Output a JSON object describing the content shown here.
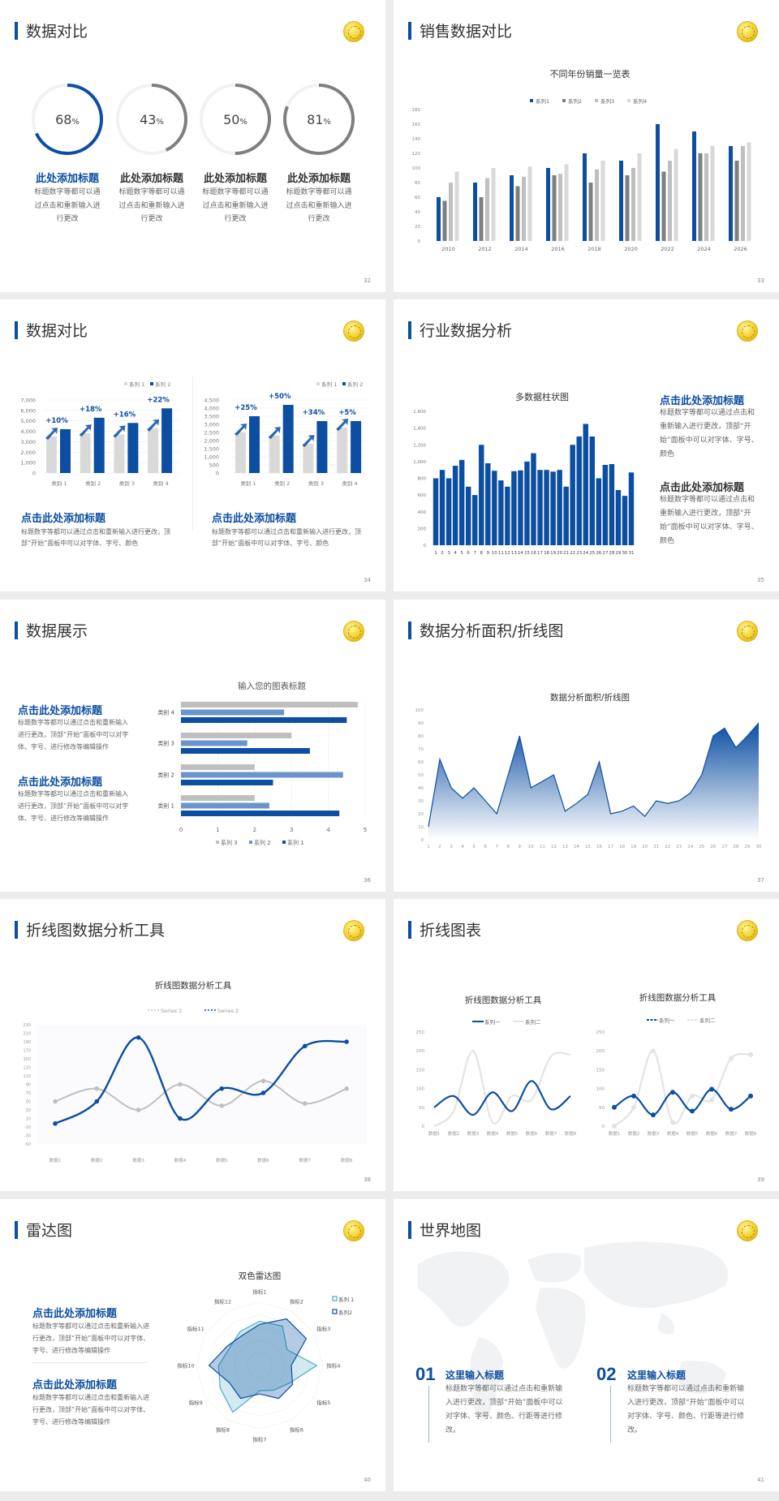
{
  "colors": {
    "blue": "#0b4ea2",
    "mid_blue": "#6a95cc",
    "dark_gray": "#7f7f7f",
    "gray": "#bfbfbf",
    "light_gray": "#d9d9d9",
    "light_blue": "#4bacc6"
  },
  "slides": [
    {
      "title": "数据对比",
      "page": "32"
    },
    {
      "title": "销售数据对比",
      "page": "33"
    },
    {
      "title": "数据对比",
      "page": "34"
    },
    {
      "title": "行业数据分析",
      "page": "35"
    },
    {
      "title": "数据展示",
      "page": "36"
    },
    {
      "title": "数据分析面积/折线图",
      "page": "37"
    },
    {
      "title": "折线图数据分析工具",
      "page": "38"
    },
    {
      "title": "折线图表",
      "page": "39"
    },
    {
      "title": "雷达图",
      "page": "40"
    },
    {
      "title": "世界地图",
      "page": "41"
    }
  ],
  "rings": [
    {
      "value": 68,
      "label": "68",
      "unit": "%",
      "heading": "此处添加标题",
      "desc": "标题数字等都可以通过点击和重新输入进行更改",
      "accent": true
    },
    {
      "value": 43,
      "label": "43",
      "unit": "%",
      "heading": "此处添加标题",
      "desc": "标题数字等都可以通过点击和重新输入进行更改",
      "accent": false
    },
    {
      "value": 50,
      "label": "50",
      "unit": "%",
      "heading": "此处添加标题",
      "desc": "标题数字等都可以通过点击和重新输入进行更改",
      "accent": false
    },
    {
      "value": 81,
      "label": "81",
      "unit": "%",
      "heading": "此处添加标题",
      "desc": "标题数字等都可以通过点击和重新输入进行更改",
      "accent": false
    }
  ],
  "slide34_text": [
    {
      "heading": "点击此处添加标题",
      "desc": "标题数字等都可以通过点击和重新输入进行更改，顶部“开始”面板中可以对字体、字号、颜色"
    },
    {
      "heading": "点击此处添加标题",
      "desc": "标题数字等都可以通过点击和重新输入进行更改，顶部“开始”面板中可以对字体、字号、颜色"
    }
  ],
  "slide35_text": [
    {
      "heading": "点击此处添加标题",
      "desc": "标题数字等都可以通过点击和重新输入进行更改，顶部“开始”面板中可以对字体、字号、颜色"
    },
    {
      "heading": "点击此处添加标题",
      "desc": "标题数字等都可以通过点击和重新输入进行更改，顶部“开始”面板中可以对字体、字号、颜色"
    }
  ],
  "slide36_text": [
    {
      "heading": "点击此处添加标题",
      "desc": "标题数字等都可以通过点击和重新输入进行更改，顶部“开始”面板中可以对字体、字号、进行修改等编辑操作"
    },
    {
      "heading": "点击此处添加标题",
      "desc": "标题数字等都可以通过点击和重新输入进行更改，顶部“开始”面板中可以对字体、字号、进行修改等编辑操作"
    }
  ],
  "slide40_text": [
    {
      "heading": "点击此处添加标题",
      "desc": "标题数字等都可以通过点击和重新输入进行更改，顶部“开始”面板中可以对字体、字号、进行修改等编辑操作"
    },
    {
      "heading": "点击此处添加标题",
      "desc": "标题数字等都可以通过点击和重新输入进行更改，顶部“开始”面板中可以对字体、字号、进行修改等编辑操作"
    }
  ],
  "slide41_items": [
    {
      "num": "01",
      "heading": "这里输入标题",
      "desc": "标题数字等都可以通过点击和重新输入进行更改，顶部“开始”面板中可以对字体、字号、颜色、行距等进行修改。"
    },
    {
      "num": "02",
      "heading": "这里输入标题",
      "desc": "标题数字等都可以通过点击和重新输入进行更改，顶部“开始”面板中可以对字体、字号、颜色、行距等进行修改。"
    }
  ],
  "chart_data": [
    {
      "type": "bar",
      "title": "不同年份销量一览表",
      "categories": [
        "2010",
        "2012",
        "2014",
        "2016",
        "2018",
        "2020",
        "2022",
        "2024",
        "2026"
      ],
      "series": [
        {
          "name": "系列1",
          "values": [
            60,
            80,
            90,
            100,
            120,
            110,
            160,
            150,
            130
          ]
        },
        {
          "name": "系列2",
          "values": [
            55,
            60,
            75,
            90,
            80,
            90,
            95,
            120,
            110
          ]
        },
        {
          "name": "系列3",
          "values": [
            80,
            86,
            88,
            92,
            98,
            100,
            110,
            120,
            130
          ]
        },
        {
          "name": "系列4",
          "values": [
            95,
            100,
            102,
            105,
            110,
            120,
            126,
            130,
            135
          ]
        }
      ],
      "ylim": [
        0,
        180
      ],
      "yticks": [
        "0",
        "20",
        "40",
        "60",
        "80",
        "100",
        "120",
        "140",
        "160",
        "180"
      ],
      "legend": "top",
      "grid": false
    },
    {
      "type": "bar",
      "categories": [
        "类别 1",
        "类别 2",
        "类别 3",
        "类别 4"
      ],
      "series": [
        {
          "name": "系列 1",
          "values": [
            3500,
            3800,
            3700,
            4300
          ]
        },
        {
          "name": "系列 2",
          "values": [
            4200,
            5300,
            4800,
            6200
          ]
        }
      ],
      "annotations": [
        "+10%",
        "+18%",
        "+16%",
        "+22%"
      ],
      "ylim": [
        0,
        7000
      ],
      "yticks": [
        "0",
        "1,000",
        "2,000",
        "3,000",
        "4,000",
        "5,000",
        "6,000",
        "7,000"
      ],
      "legend": "top-right",
      "grid": true
    },
    {
      "type": "bar",
      "categories": [
        "类别 1",
        "类别 2",
        "类别 3",
        "类别 4"
      ],
      "series": [
        {
          "name": "系列 1",
          "values": [
            2500,
            2300,
            1800,
            2800
          ]
        },
        {
          "name": "系列 2",
          "values": [
            3500,
            4200,
            3200,
            3200
          ]
        }
      ],
      "annotations": [
        "+25%",
        "+50%",
        "+34%",
        "+5%"
      ],
      "ylim": [
        0,
        4500
      ],
      "yticks": [
        "0",
        "500",
        "1,000",
        "1,500",
        "2,000",
        "2,500",
        "3,000",
        "3,500",
        "4,000",
        "4,500"
      ],
      "legend": "top-right",
      "grid": true
    },
    {
      "type": "bar",
      "title": "多数据柱状图",
      "categories": [
        "1",
        "2",
        "3",
        "4",
        "5",
        "6",
        "7",
        "8",
        "9",
        "10",
        "11",
        "12",
        "13",
        "14",
        "15",
        "16",
        "17",
        "18",
        "19",
        "20",
        "21",
        "22",
        "23",
        "24",
        "25",
        "26",
        "27",
        "28",
        "29",
        "30",
        "31"
      ],
      "values": [
        800,
        900,
        800,
        950,
        1020,
        700,
        600,
        1200,
        980,
        890,
        775,
        700,
        885,
        895,
        1000,
        1100,
        900,
        900,
        880,
        900,
        700,
        1200,
        1300,
        1450,
        1300,
        800,
        960,
        970,
        660,
        590,
        870
      ],
      "ylim": [
        0,
        1600
      ],
      "yticks": [
        "0",
        "200",
        "400",
        "600",
        "800",
        "1,000",
        "1,200",
        "1,400",
        "1,600"
      ],
      "grid": false
    },
    {
      "type": "bar",
      "orientation": "horizontal",
      "title": "输入您的图表标题",
      "categories": [
        "类别 1",
        "类别 2",
        "类别 3",
        "类别 4"
      ],
      "series": [
        {
          "name": "系列 1",
          "values": [
            4.3,
            2.5,
            3.5,
            4.5
          ]
        },
        {
          "name": "系列 2",
          "values": [
            2.4,
            4.4,
            1.8,
            2.8
          ]
        },
        {
          "name": "系列 3",
          "values": [
            2,
            2,
            3,
            4.8
          ]
        }
      ],
      "xlim": [
        0,
        5
      ],
      "xticks": [
        "0",
        "1",
        "2",
        "3",
        "4",
        "5"
      ],
      "legend": "bottom",
      "legend_order": [
        "系列 3",
        "系列 2",
        "系列 1"
      ],
      "grid": true
    },
    {
      "type": "area",
      "title": "数据分析面积/折线图",
      "x": [
        "1",
        "2",
        "3",
        "4",
        "5",
        "6",
        "7",
        "8",
        "9",
        "10",
        "11",
        "12",
        "13",
        "14",
        "15",
        "16",
        "17",
        "18",
        "19",
        "20",
        "21",
        "22",
        "23",
        "24",
        "25",
        "26",
        "27",
        "28",
        "29",
        "30"
      ],
      "values": [
        10,
        62,
        40,
        32,
        40,
        30,
        20,
        50,
        80,
        40,
        45,
        50,
        22,
        28,
        35,
        60,
        20,
        22,
        26,
        18,
        30,
        28,
        30,
        36,
        50,
        80,
        86,
        71,
        80,
        90
      ],
      "ylim": [
        0,
        100
      ],
      "yticks": [
        "0",
        "10",
        "20",
        "30",
        "40",
        "50",
        "60",
        "70",
        "80",
        "90",
        "100"
      ],
      "grid": false
    },
    {
      "type": "line",
      "smooth": true,
      "title": "折线图数据分析工具",
      "categories": [
        "数据1",
        "数据2",
        "数据3",
        "数据4",
        "数据5",
        "数据6",
        "数据7",
        "数据8"
      ],
      "series": [
        {
          "name": "Series 1",
          "values": [
            50,
            80,
            30,
            90,
            40,
            98,
            45,
            80
          ]
        },
        {
          "name": "Series 2",
          "values": [
            -2,
            50,
            200,
            10,
            80,
            70,
            180,
            190
          ]
        }
      ],
      "ylim": [
        -50,
        230
      ],
      "yticks": [
        "-50",
        "-30",
        "-10",
        "10",
        "30",
        "50",
        "70",
        "90",
        "110",
        "130",
        "150",
        "170",
        "190",
        "210",
        "230"
      ],
      "legend": "top"
    },
    {
      "type": "line",
      "smooth": true,
      "title": "折线图数据分析工具",
      "categories": [
        "数据1",
        "数据2",
        "数据3",
        "数据4",
        "数据5",
        "数据6",
        "数据7",
        "数据8"
      ],
      "series": [
        {
          "name": "系列一",
          "values": [
            50,
            80,
            30,
            90,
            40,
            120,
            45,
            80
          ]
        },
        {
          "name": "系列二",
          "values": [
            0,
            40,
            200,
            10,
            80,
            70,
            185,
            190
          ]
        }
      ],
      "ylim": [
        0,
        250
      ],
      "yticks": [
        "0",
        "50",
        "100",
        "150",
        "200",
        "250"
      ],
      "legend": "top"
    },
    {
      "type": "line",
      "smooth": true,
      "markers": true,
      "title": "折线图数据分析工具",
      "categories": [
        "数据1",
        "数据2",
        "数据3",
        "数据4",
        "数据5",
        "数据6",
        "数据7",
        "数据8"
      ],
      "series": [
        {
          "name": "系列一",
          "values": [
            50,
            80,
            30,
            90,
            40,
            98,
            45,
            80
          ]
        },
        {
          "name": "系列二",
          "values": [
            0,
            50,
            200,
            10,
            80,
            70,
            180,
            190
          ]
        }
      ],
      "ylim": [
        0,
        250
      ],
      "yticks": [
        "0",
        "50",
        "100",
        "150",
        "200",
        "250"
      ],
      "legend": "top"
    },
    {
      "type": "radar",
      "title": "双色雷达图",
      "axes": [
        "指标1",
        "指标2",
        "指标3",
        "指标4",
        "指标5",
        "指标6",
        "指标7",
        "指标8",
        "指标9",
        "指标10",
        "指标11",
        "指标12"
      ],
      "series": [
        {
          "name": "系列 1",
          "values": [
            70,
            72,
            50,
            90,
            55,
            45,
            40,
            85,
            72,
            65,
            55,
            62
          ]
        },
        {
          "name": "系列2",
          "values": [
            65,
            85,
            85,
            50,
            60,
            60,
            45,
            60,
            55,
            80,
            60,
            55
          ]
        }
      ],
      "rmax": 100,
      "legend": "top-right"
    }
  ]
}
